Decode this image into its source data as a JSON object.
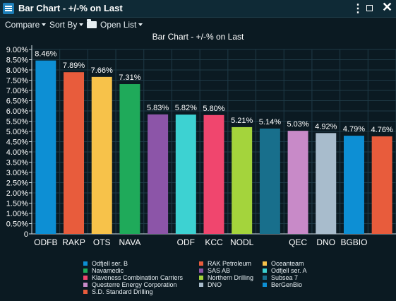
{
  "window": {
    "title": "Bar Chart - +/-% on Last",
    "icons": [
      "menu-icon",
      "kebab-icon",
      "maximize-icon",
      "close-icon"
    ]
  },
  "toolbar": {
    "compare_label": "Compare",
    "sortby_label": "Sort By",
    "openlist_label": "Open List"
  },
  "colors": {
    "background": "#0b1a22",
    "grid": "#1f3a47"
  },
  "chart_data": {
    "type": "bar",
    "title": "Bar Chart - +/-% on Last",
    "categories": [
      "ODFB",
      "RAKP",
      "OTS",
      "NAVA",
      "",
      "ODF",
      "KCC",
      "NODL",
      "",
      "QEC",
      "DNO",
      "BGBIO",
      ""
    ],
    "values": [
      8.46,
      7.89,
      7.66,
      7.31,
      5.83,
      5.82,
      5.8,
      5.21,
      5.14,
      5.03,
      4.92,
      4.79,
      4.76
    ],
    "value_labels": [
      "8.46%",
      "7.89%",
      "7.66%",
      "7.31%",
      "5.83%",
      "5.82%",
      "5.80%",
      "5.21%",
      "5.14%",
      "5.03%",
      "4.92%",
      "4.79%",
      "4.76%"
    ],
    "colors": [
      "#0d8fd4",
      "#e85c3c",
      "#f7c24a",
      "#1faa5a",
      "#8c55a8",
      "#3dd2d2",
      "#f0466e",
      "#a4d43c",
      "#186f8c",
      "#c88ac8",
      "#a8bccc",
      "#0d8fd4",
      "#e85c3c"
    ],
    "ylim": [
      0,
      9.0
    ],
    "yticks": [
      "9.00%",
      "8.50%",
      "8.00%",
      "7.50%",
      "7.00%",
      "6.50%",
      "6.00%",
      "5.50%",
      "5.00%",
      "4.50%",
      "4.00%",
      "3.50%",
      "3.00%",
      "2.50%",
      "2.00%",
      "1.50%",
      "1.00%",
      "0.50%",
      "0"
    ],
    "ytick_values": [
      9.0,
      8.5,
      8.0,
      7.5,
      7.0,
      6.5,
      6.0,
      5.5,
      5.0,
      4.5,
      4.0,
      3.5,
      3.0,
      2.5,
      2.0,
      1.5,
      1.0,
      0.5,
      0
    ],
    "grid": true,
    "legend_position": "bottom",
    "legend": [
      {
        "name": "Odfjell ser. B",
        "color": "#0d8fd4"
      },
      {
        "name": "RAK Petroleum",
        "color": "#e85c3c"
      },
      {
        "name": "Oceanteam",
        "color": "#f7c24a"
      },
      {
        "name": "Navamedic",
        "color": "#1faa5a"
      },
      {
        "name": "SAS AB",
        "color": "#8c55a8"
      },
      {
        "name": "Odfjell ser. A",
        "color": "#3dd2d2"
      },
      {
        "name": "Klaveness Combination Carriers",
        "color": "#f0466e"
      },
      {
        "name": "Northern Drilling",
        "color": "#a4d43c"
      },
      {
        "name": "Subsea 7",
        "color": "#186f8c"
      },
      {
        "name": "Questerre Energy Corporation",
        "color": "#c88ac8"
      },
      {
        "name": "DNO",
        "color": "#a8bccc"
      },
      {
        "name": "BerGenBio",
        "color": "#0d8fd4"
      },
      {
        "name": "S.D. Standard Drilling",
        "color": "#e85c3c"
      }
    ]
  }
}
